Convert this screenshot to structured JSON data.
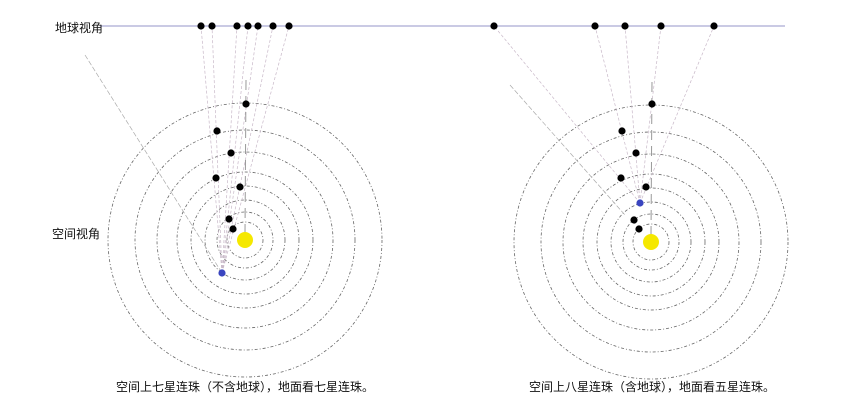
{
  "labels": {
    "earth_view": "地球视角",
    "space_view": "空间视角"
  },
  "captions": {
    "left": "空间上七星连珠（不含地球），地面看七星连珠。",
    "right": "空间上八星连珠（含地球），地面看五星连珠。"
  },
  "colors": {
    "sun": "#f5e800",
    "earth": "#3a45c0",
    "planet": "#000000",
    "horizon": "#b8b8dc",
    "orbit": "#666666"
  }
}
